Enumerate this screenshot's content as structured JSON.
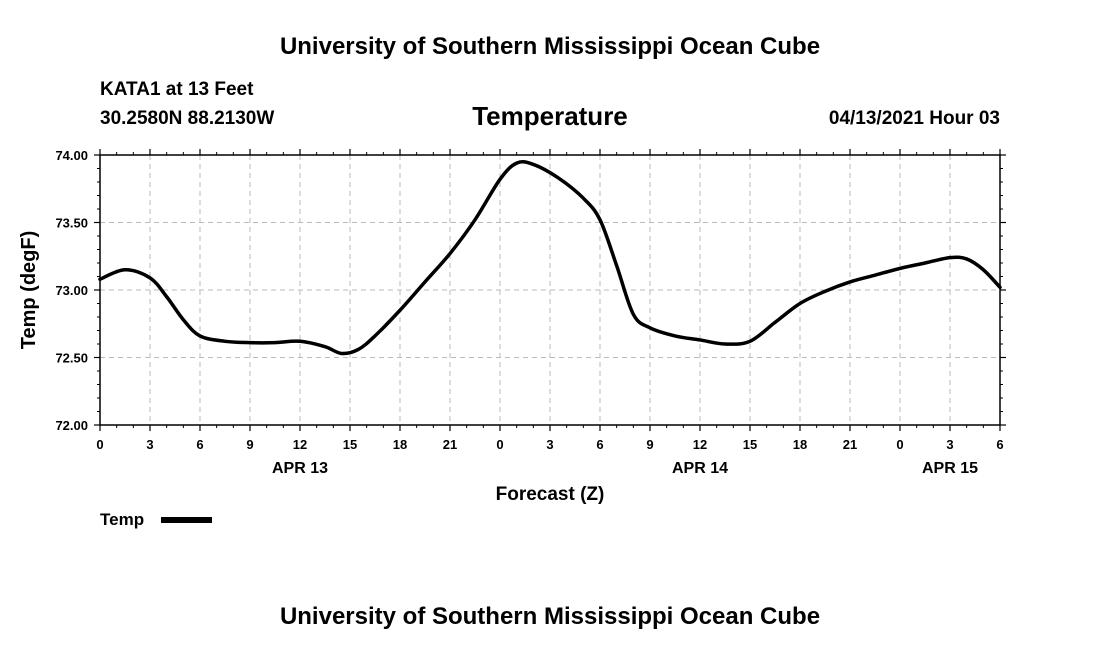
{
  "header": {
    "title": "University of Southern Mississippi Ocean Cube",
    "station": "KATA1 at 13 Feet",
    "coords": "30.2580N  88.2130W",
    "datetime": "04/13/2021 Hour 03"
  },
  "footer": {
    "title": "University of Southern Mississippi Ocean Cube"
  },
  "chart_data": {
    "type": "line",
    "title": "Temperature",
    "xlabel": "Forecast (Z)",
    "ylabel": "Temp (degF)",
    "ylim": [
      72.0,
      74.0
    ],
    "xlim": [
      0,
      54
    ],
    "y_ticks": [
      "72.00",
      "72.50",
      "73.00",
      "73.50",
      "74.00"
    ],
    "x_ticks": [
      "0",
      "3",
      "6",
      "9",
      "12",
      "15",
      "18",
      "21",
      "0",
      "3",
      "6",
      "9",
      "12",
      "15",
      "18",
      "21",
      "0",
      "3",
      "6"
    ],
    "date_labels": [
      {
        "label": "APR 13",
        "at": 12
      },
      {
        "label": "APR 14",
        "at": 36
      },
      {
        "label": "APR 15",
        "at": 51
      }
    ],
    "grid": true,
    "legend_position": "bottom-left",
    "series": [
      {
        "name": "Temp",
        "color": "#000000",
        "x": [
          0,
          1.5,
          3,
          4,
          5,
          6,
          7.5,
          9,
          10.5,
          12,
          13.5,
          14.5,
          15.5,
          16.5,
          18,
          19.5,
          21,
          22.5,
          24,
          25,
          26,
          27.5,
          29,
          30,
          31,
          32,
          33,
          34.5,
          36,
          37.5,
          39,
          40.5,
          42,
          43.5,
          45,
          46.5,
          48,
          49.5,
          51,
          52,
          53,
          54
        ],
        "y": [
          73.08,
          73.15,
          73.09,
          72.95,
          72.78,
          72.66,
          72.62,
          72.61,
          72.61,
          72.62,
          72.58,
          72.53,
          72.56,
          72.66,
          72.85,
          73.06,
          73.27,
          73.52,
          73.82,
          73.94,
          73.93,
          73.83,
          73.68,
          73.52,
          73.18,
          72.82,
          72.72,
          72.66,
          72.63,
          72.6,
          72.62,
          72.76,
          72.9,
          72.99,
          73.06,
          73.11,
          73.16,
          73.2,
          73.24,
          73.23,
          73.15,
          73.02
        ]
      }
    ]
  }
}
